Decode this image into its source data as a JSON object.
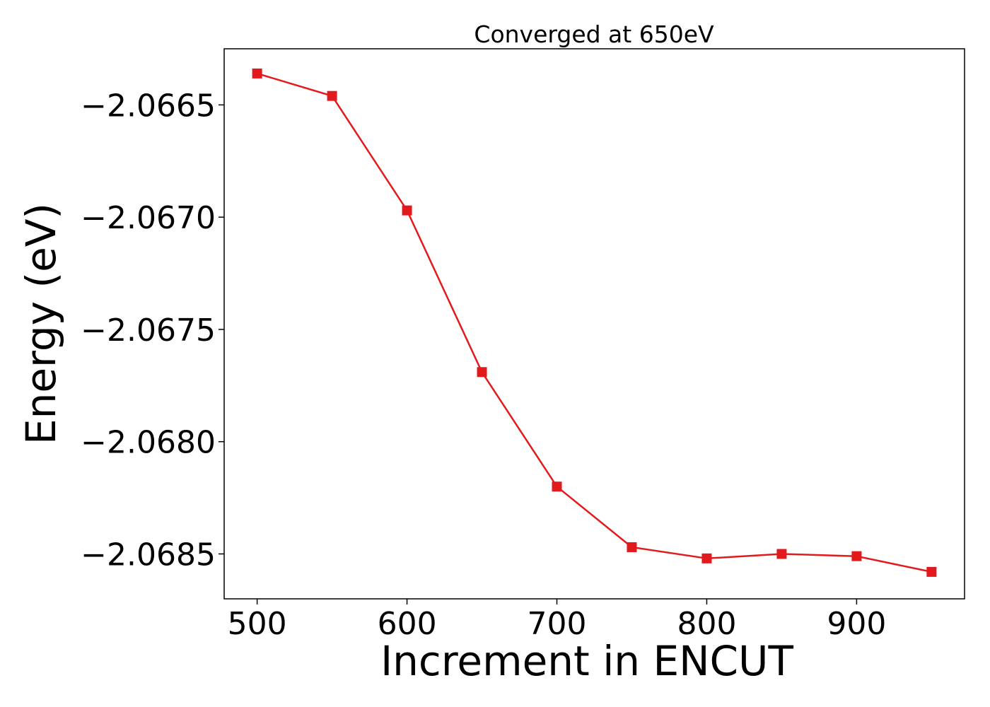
{
  "chart_data": {
    "type": "line",
    "title": "Converged at 650eV",
    "xlabel": "Increment in ENCUT",
    "ylabel": "Energy (eV)",
    "x": [
      500,
      550,
      600,
      650,
      700,
      750,
      800,
      850,
      900,
      950
    ],
    "series": [
      {
        "values": [
          -2.06636,
          -2.06646,
          -2.06697,
          -2.06769,
          -2.0682,
          -2.06847,
          -2.06852,
          -2.0685,
          -2.06851,
          -2.06858
        ],
        "color": "#e31a1c",
        "marker": "square"
      }
    ],
    "xlim": [
      478,
      972
    ],
    "ylim": [
      -2.0687,
      -2.06625
    ],
    "xticks": [
      500,
      600,
      700,
      800,
      900
    ],
    "xtick_labels": [
      "500",
      "600",
      "700",
      "800",
      "900"
    ],
    "yticks": [
      -2.0665,
      -2.067,
      -2.0675,
      -2.068,
      -2.0685
    ],
    "ytick_labels": [
      "−2.0665",
      "−2.0670",
      "−2.0675",
      "−2.0680",
      "−2.0685"
    ],
    "grid": false,
    "legend": "none"
  }
}
